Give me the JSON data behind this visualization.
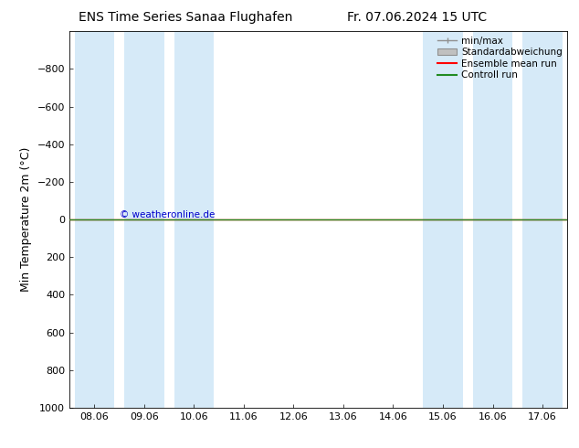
{
  "title": "ENS Time Series Sanaa Flughafen",
  "title2": "Fr. 07.06.2024 15 UTC",
  "ylabel": "Min Temperature 2m (°C)",
  "ylim_bottom": -1000,
  "ylim_top": 1000,
  "yticks": [
    -800,
    -600,
    -400,
    -200,
    0,
    200,
    400,
    600,
    800,
    1000
  ],
  "xtick_labels": [
    "08.06",
    "09.06",
    "10.06",
    "11.06",
    "12.06",
    "13.06",
    "14.06",
    "15.06",
    "16.06",
    "17.06"
  ],
  "xtick_positions": [
    0,
    1,
    2,
    3,
    4,
    5,
    6,
    7,
    8,
    9
  ],
  "shaded_bands": [
    [
      0,
      0.4
    ],
    [
      1,
      0.4
    ],
    [
      2,
      0.4
    ],
    [
      7,
      0.4
    ],
    [
      8,
      0.4
    ],
    [
      9,
      0.4
    ]
  ],
  "band_color": "#d6eaf8",
  "line_value": 0,
  "mean_run_color": "#ff0000",
  "control_run_color": "#228B22",
  "minmax_color": "#909090",
  "std_face_color": "#c0c0c0",
  "std_edge_color": "#909090",
  "watermark": "© weatheronline.de",
  "watermark_color": "#0000cc",
  "background_color": "#ffffff",
  "legend_labels": [
    "min/max",
    "Standardabweichung",
    "Ensemble mean run",
    "Controll run"
  ],
  "fig_width": 6.34,
  "fig_height": 4.9,
  "dpi": 100,
  "tick_label_fontsize": 8,
  "ylabel_fontsize": 9,
  "title_fontsize": 10,
  "legend_fontsize": 7.5
}
